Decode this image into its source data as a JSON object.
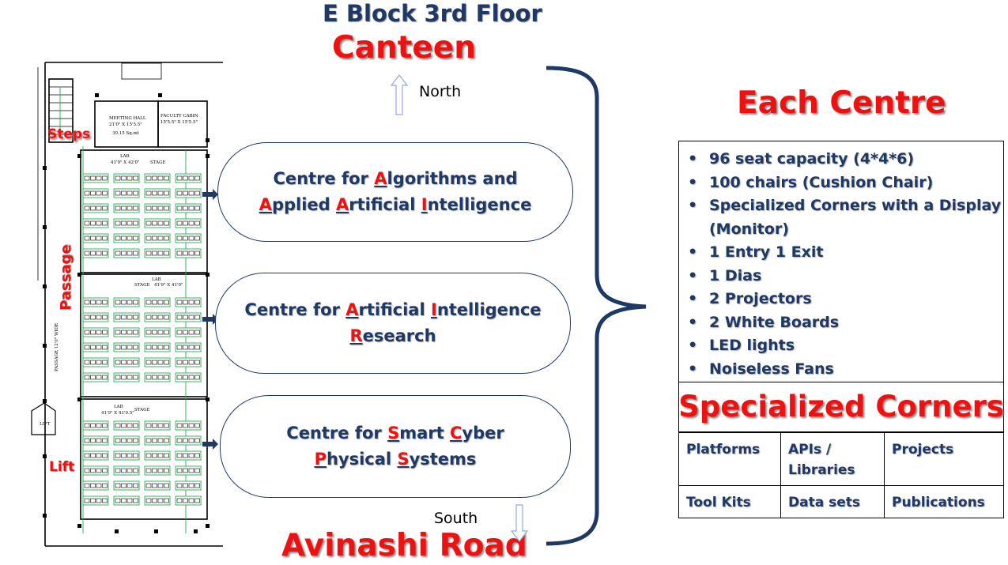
{
  "title": "E Block 3rd Floor",
  "top_label": "Canteen",
  "bottom_label": "Avinashi Road",
  "directions": {
    "north": "North",
    "south": "South"
  },
  "floor_plan": {
    "steps": "Steps",
    "passage": "Passage",
    "lift": "Lift",
    "meeting_hall": "MEETING HALL",
    "meeting_hall_dim": "21'0\" X 15'5.5\"",
    "meeting_hall_area": "30.15 Sq.mt",
    "faculty_cabin": "FACULTY CABIN",
    "faculty_cabin_dim": "15'5.5\" X 15'5.5\"",
    "lab1": "LAB",
    "lab1_dim": "41'9\" X 42'0\"",
    "lab2": "LAB",
    "lab2_dim": "41'9\" X 41'9\"",
    "lab3": "LAB",
    "lab3_dim": "41'9\" X 41'9.5\"",
    "stage": "STAGE",
    "passage_wide": "PASSAGE 12'0\" WIDE",
    "lift_room": "LIFT"
  },
  "centres": [
    {
      "line1": [
        [
          "Centre for ",
          ""
        ],
        [
          "A",
          "u"
        ],
        [
          "lgorithms and",
          ""
        ]
      ],
      "line2": [
        [
          "A",
          "u"
        ],
        [
          "pplied ",
          ""
        ],
        [
          "A",
          "u"
        ],
        [
          "rtificial ",
          ""
        ],
        [
          "I",
          "u"
        ],
        [
          "ntelligence",
          ""
        ]
      ]
    },
    {
      "line1": [
        [
          "Centre for ",
          ""
        ],
        [
          "A",
          "u"
        ],
        [
          "rtificial ",
          ""
        ],
        [
          "I",
          "u"
        ],
        [
          "ntelligence",
          ""
        ]
      ],
      "line2": [
        [
          "R",
          "u"
        ],
        [
          "esearch",
          ""
        ]
      ]
    },
    {
      "line1": [
        [
          "Centre for ",
          ""
        ],
        [
          "S",
          "u"
        ],
        [
          "mart ",
          ""
        ],
        [
          "C",
          "u"
        ],
        [
          "yber",
          ""
        ]
      ],
      "line2": [
        [
          "P",
          "u"
        ],
        [
          "hysical ",
          ""
        ],
        [
          "S",
          "u"
        ],
        [
          "ystems",
          ""
        ]
      ]
    }
  ],
  "each_centre": {
    "heading": "Each Centre",
    "features": [
      "96 seat capacity (4*4*6)",
      "100 chairs (Cushion Chair)",
      "Specialized Corners with a Display (Monitor)",
      "1 Entry 1 Exit",
      "1 Dias",
      "2 Projectors",
      "2 White Boards",
      "LED lights",
      "Noiseless Fans"
    ]
  },
  "specialized_corners": {
    "heading": "Specialized Corners",
    "rows": [
      [
        "Platforms",
        "APIs / Libraries",
        "Projects"
      ],
      [
        "Tool Kits",
        "Data sets",
        "Publications"
      ]
    ]
  },
  "colors": {
    "navy": "#1f3864",
    "red": "#ee1111",
    "green": "#21b14a"
  }
}
